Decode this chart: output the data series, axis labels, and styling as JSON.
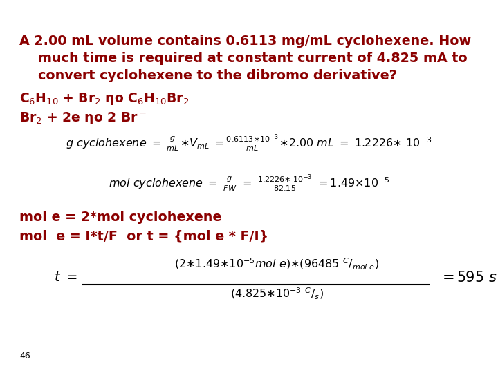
{
  "bg": "#ffffff",
  "red": "#8B0000",
  "blk": "#000000",
  "page": "46",
  "t1": "A 2.00 mL volume contains 0.6113 mg/mL cyclohexene. How",
  "t2": "much time is required at constant current of 4.825 mA to",
  "t3": "convert cyclohexene to the dibromo derivative?",
  "eq1a": "C$_6$H$_{10}$ + Br$_2$ ηo C$_6$H$_{10}$Br$_2$",
  "eq1b": "Br$_2$ + 2e ηo 2 Br$^-$",
  "mol_e_line1": "mol e = 2*mol cyclohexene",
  "mol_e_line2": "mol  e = I*t/F  or t = {mol e * F/I}",
  "fig_w": 7.2,
  "fig_h": 5.4,
  "dpi": 100
}
